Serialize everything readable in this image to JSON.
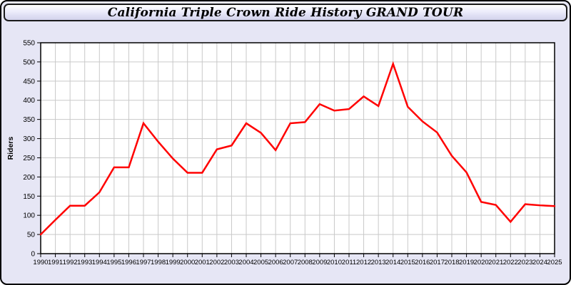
{
  "header": {
    "title": "California Triple Crown Ride History GRAND TOUR"
  },
  "colors": {
    "card_background": "#e6e6f5",
    "card_border": "#000000",
    "plot_background": "#ffffff",
    "gridline": "#c9c9c9",
    "plot_border": "#000000",
    "axis_text": "#000000",
    "line": "#ff0000"
  },
  "chart_data": {
    "type": "line",
    "title": "California Triple Crown Ride History GRAND TOUR",
    "xlabel": "",
    "ylabel": "Riders",
    "ylim": [
      0,
      550
    ],
    "y_ticks": [
      0,
      50,
      100,
      150,
      200,
      250,
      300,
      350,
      400,
      450,
      500,
      550
    ],
    "grid": true,
    "legend": "none",
    "categories": [
      1990,
      1991,
      1992,
      1993,
      1994,
      1995,
      1996,
      1997,
      1998,
      1999,
      2000,
      2001,
      2002,
      2003,
      2004,
      2005,
      2006,
      2007,
      2008,
      2009,
      2010,
      2011,
      2012,
      2013,
      2014,
      2015,
      2016,
      2017,
      2018,
      2019,
      2020,
      2021,
      2022,
      2023,
      2024,
      2025
    ],
    "series": [
      {
        "name": "Riders",
        "values": [
          50,
          88,
          125,
          125,
          160,
          225,
          225,
          340,
          292,
          248,
          211,
          211,
          272,
          282,
          340,
          315,
          270,
          340,
          343,
          390,
          373,
          377,
          410,
          385,
          495,
          383,
          345,
          316,
          255,
          212,
          135,
          127,
          83,
          129,
          126,
          124
        ]
      }
    ]
  }
}
